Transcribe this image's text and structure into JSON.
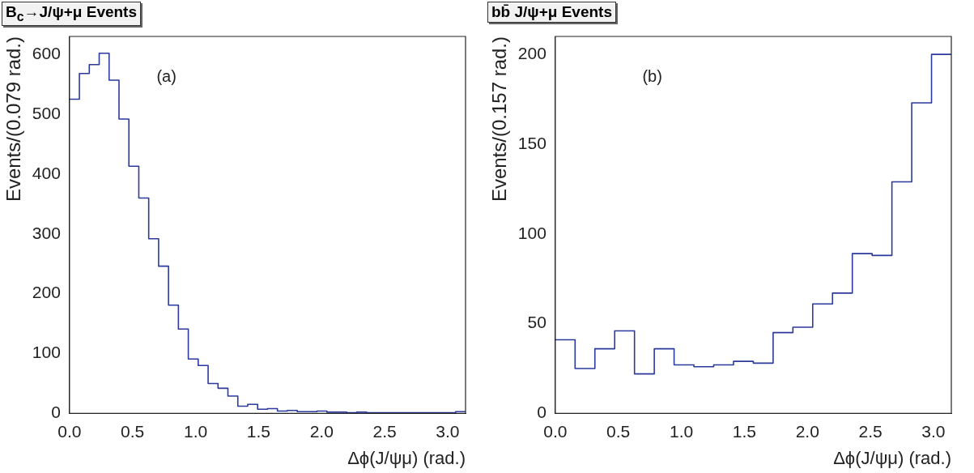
{
  "chart_data": [
    {
      "type": "histogram",
      "title": "B$_{c}$→J/ψ+μ Events",
      "xlabel": "Δϕ(J/ψμ) (rad.)",
      "ylabel": "Events/(0.079 rad.)",
      "annotations": [
        "(a)"
      ],
      "bins": [
        0,
        0.0785,
        0.1571,
        0.2356,
        0.3142,
        0.3927,
        0.4712,
        0.5498,
        0.6283,
        0.7069,
        0.7854,
        0.8639,
        0.9425,
        1.021,
        1.0996,
        1.1781,
        1.2566,
        1.3352,
        1.4137,
        1.4923,
        1.5708,
        1.6493,
        1.7279,
        1.8064,
        1.885,
        1.9635,
        2.042,
        2.1206,
        2.1991,
        2.2777,
        2.3562,
        2.4347,
        2.5133,
        2.5918,
        2.6704,
        2.7489,
        2.8274,
        2.906,
        2.9845,
        3.0631,
        3.1416
      ],
      "values": [
        525,
        568,
        583,
        602,
        557,
        492,
        413,
        360,
        292,
        246,
        181,
        141,
        91,
        80,
        50,
        42,
        29,
        12,
        15,
        7,
        8,
        4,
        5,
        3,
        3,
        4,
        2,
        2,
        1,
        2,
        1,
        1,
        1,
        1,
        1,
        1,
        1,
        1,
        1,
        3
      ],
      "color": "#2b3a9c",
      "xlim": [
        0,
        3.1416
      ],
      "ylim": [
        0,
        630
      ],
      "xticks": [
        {
          "value": 0,
          "label": "0.0"
        },
        {
          "value": 0.5,
          "label": "0.5"
        },
        {
          "value": 1,
          "label": "1.0"
        },
        {
          "value": 1.5,
          "label": "1.5"
        },
        {
          "value": 2,
          "label": "2.0"
        },
        {
          "value": 2.5,
          "label": "2.5"
        },
        {
          "value": 3,
          "label": "3.0"
        }
      ],
      "yticks": [
        0,
        100,
        200,
        300,
        400,
        500,
        600
      ],
      "grid": false,
      "legend": false
    },
    {
      "type": "histogram",
      "title": "bb̄ J/ψ+μ Events",
      "xlabel": "Δϕ(J/ψμ) (rad.)",
      "ylabel": "Events/(0.157 rad.)",
      "annotations": [
        "(b)"
      ],
      "bins": [
        0,
        0.1571,
        0.3142,
        0.4712,
        0.6283,
        0.7854,
        0.9425,
        1.0996,
        1.2566,
        1.4137,
        1.5708,
        1.7279,
        1.885,
        2.042,
        2.1991,
        2.3562,
        2.5133,
        2.6704,
        2.8274,
        2.9845,
        3.1416
      ],
      "values": [
        41,
        25,
        36,
        46,
        22,
        36,
        27,
        26,
        27,
        29,
        28,
        45,
        48,
        61,
        67,
        89,
        88,
        129,
        173,
        200
      ],
      "color": "#2b3a9c",
      "xlim": [
        0,
        3.1416
      ],
      "ylim": [
        0,
        210
      ],
      "xticks": [
        {
          "value": 0,
          "label": "0.0"
        },
        {
          "value": 0.5,
          "label": "0.5"
        },
        {
          "value": 1,
          "label": "1.0"
        },
        {
          "value": 1.5,
          "label": "1.5"
        },
        {
          "value": 2,
          "label": "2.0"
        },
        {
          "value": 2.5,
          "label": "2.5"
        },
        {
          "value": 3,
          "label": "3.0"
        }
      ],
      "yticks": [
        0,
        50,
        100,
        150,
        200
      ],
      "grid": false,
      "legend": false
    }
  ]
}
